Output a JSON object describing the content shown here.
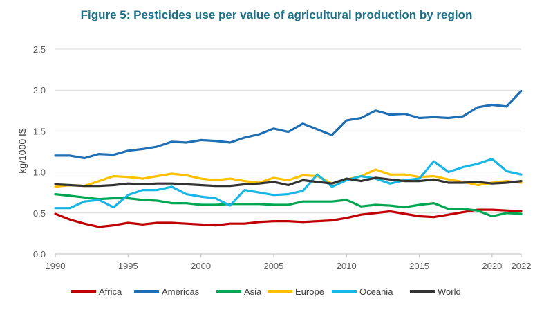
{
  "chart_data": {
    "type": "line",
    "title": "Figure 5: Pesticides use per value of agricultural production by region",
    "title_color": "#1f6f8b",
    "xlabel": "",
    "ylabel": "kg/1000 I$",
    "xlim": [
      1990,
      2022
    ],
    "ylim": [
      0.0,
      2.5
    ],
    "x_ticks": [
      "1990",
      "1995",
      "2000",
      "2005",
      "2010",
      "2015",
      "2020",
      "2022"
    ],
    "y_ticks": [
      "0.0",
      "0.5",
      "1.0",
      "1.5",
      "2.0",
      "2.5"
    ],
    "x_tick_values": [
      1990,
      1995,
      2000,
      2005,
      2010,
      2015,
      2020,
      2022
    ],
    "y_tick_values": [
      0,
      0.5,
      1.0,
      1.5,
      2.0,
      2.5
    ],
    "grid": true,
    "legend_position": "bottom",
    "x": [
      1990,
      1991,
      1992,
      1993,
      1994,
      1995,
      1996,
      1997,
      1998,
      1999,
      2000,
      2001,
      2002,
      2003,
      2004,
      2005,
      2006,
      2007,
      2008,
      2009,
      2010,
      2011,
      2012,
      2013,
      2014,
      2015,
      2016,
      2017,
      2018,
      2019,
      2020,
      2021,
      2022
    ],
    "series": [
      {
        "name": "Africa",
        "color": "#c00000",
        "values": [
          0.49,
          0.42,
          0.37,
          0.33,
          0.35,
          0.38,
          0.36,
          0.38,
          0.38,
          0.37,
          0.36,
          0.35,
          0.37,
          0.37,
          0.39,
          0.4,
          0.4,
          0.39,
          0.4,
          0.41,
          0.44,
          0.48,
          0.5,
          0.52,
          0.49,
          0.46,
          0.45,
          0.48,
          0.51,
          0.54,
          0.54,
          0.53,
          0.52
        ]
      },
      {
        "name": "Americas",
        "color": "#1f6fb5",
        "values": [
          1.2,
          1.2,
          1.17,
          1.22,
          1.21,
          1.26,
          1.28,
          1.31,
          1.37,
          1.36,
          1.39,
          1.38,
          1.36,
          1.42,
          1.46,
          1.53,
          1.49,
          1.59,
          1.52,
          1.45,
          1.63,
          1.66,
          1.75,
          1.7,
          1.71,
          1.66,
          1.67,
          1.66,
          1.68,
          1.79,
          1.82,
          1.8,
          1.99
        ]
      },
      {
        "name": "Asia",
        "color": "#00a651",
        "values": [
          0.73,
          0.71,
          0.69,
          0.67,
          0.68,
          0.68,
          0.66,
          0.65,
          0.62,
          0.62,
          0.6,
          0.6,
          0.61,
          0.61,
          0.61,
          0.6,
          0.6,
          0.64,
          0.64,
          0.64,
          0.66,
          0.58,
          0.6,
          0.59,
          0.57,
          0.6,
          0.62,
          0.55,
          0.55,
          0.53,
          0.46,
          0.5,
          0.49
        ]
      },
      {
        "name": "Europe",
        "color": "#ffc000",
        "values": [
          0.82,
          0.84,
          0.83,
          0.89,
          0.95,
          0.94,
          0.92,
          0.95,
          0.98,
          0.96,
          0.92,
          0.9,
          0.92,
          0.89,
          0.87,
          0.93,
          0.9,
          0.96,
          0.95,
          0.86,
          0.91,
          0.95,
          1.03,
          0.97,
          0.97,
          0.94,
          0.95,
          0.91,
          0.88,
          0.84,
          0.87,
          0.89,
          0.87
        ]
      },
      {
        "name": "Oceania",
        "color": "#19b5e5",
        "values": [
          0.56,
          0.56,
          0.64,
          0.66,
          0.57,
          0.72,
          0.78,
          0.78,
          0.82,
          0.73,
          0.7,
          0.68,
          0.59,
          0.78,
          0.75,
          0.72,
          0.73,
          0.77,
          0.97,
          0.82,
          0.9,
          0.95,
          0.92,
          0.86,
          0.9,
          0.92,
          1.13,
          1.0,
          1.06,
          1.1,
          1.16,
          1.01,
          0.97
        ]
      },
      {
        "name": "World",
        "color": "#333333",
        "values": [
          0.85,
          0.84,
          0.83,
          0.83,
          0.84,
          0.86,
          0.85,
          0.86,
          0.86,
          0.85,
          0.84,
          0.83,
          0.83,
          0.85,
          0.86,
          0.88,
          0.84,
          0.9,
          0.88,
          0.86,
          0.92,
          0.89,
          0.93,
          0.91,
          0.89,
          0.89,
          0.91,
          0.87,
          0.87,
          0.88,
          0.86,
          0.87,
          0.89
        ]
      }
    ]
  }
}
